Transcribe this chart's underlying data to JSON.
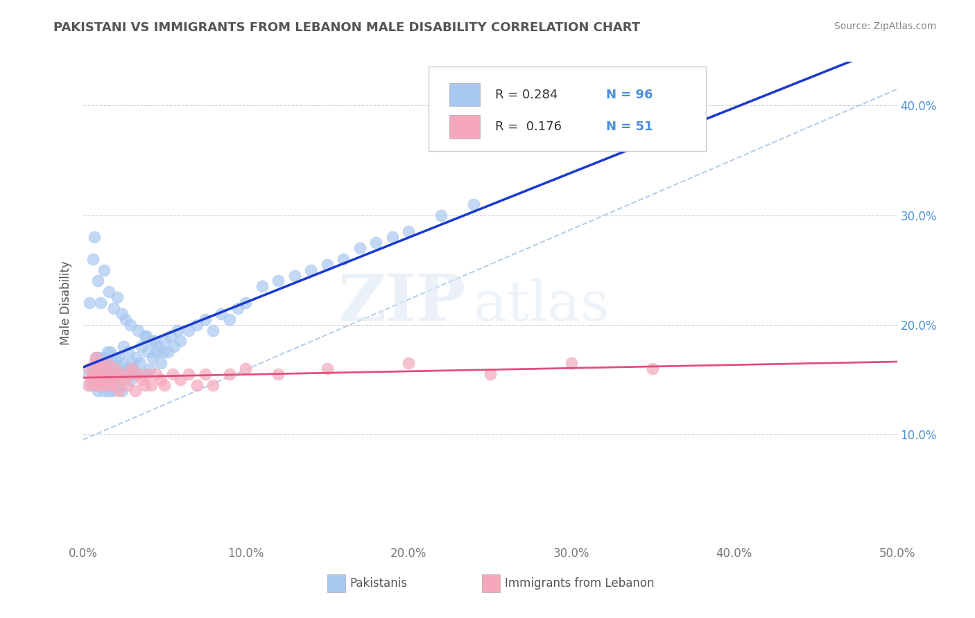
{
  "title": "PAKISTANI VS IMMIGRANTS FROM LEBANON MALE DISABILITY CORRELATION CHART",
  "source": "Source: ZipAtlas.com",
  "ylabel": "Male Disability",
  "xlim": [
    0.0,
    0.5
  ],
  "ylim": [
    0.0,
    0.44
  ],
  "xtick_labels": [
    "0.0%",
    "10.0%",
    "20.0%",
    "30.0%",
    "40.0%",
    "50.0%"
  ],
  "xtick_vals": [
    0.0,
    0.1,
    0.2,
    0.3,
    0.4,
    0.5
  ],
  "ytick_labels": [
    "10.0%",
    "20.0%",
    "30.0%",
    "40.0%"
  ],
  "ytick_vals": [
    0.1,
    0.2,
    0.3,
    0.4
  ],
  "R_blue": 0.284,
  "N_blue": 96,
  "R_pink": 0.176,
  "N_pink": 51,
  "blue_color": "#a8c8f0",
  "pink_color": "#f5a8bc",
  "blue_line_color": "#1a3acc",
  "pink_line_color": "#e0507a",
  "ref_line_color": "#b0c8e8",
  "legend_label_blue": "Pakistanis",
  "legend_label_pink": "Immigrants from Lebanon",
  "watermark_zip": "ZIP",
  "watermark_atlas": "atlas",
  "background_color": "#ffffff",
  "grid_color": "#d0d0d0",
  "tick_color": "#4a90d9",
  "title_color": "#555555",
  "source_color": "#888888",
  "ylabel_color": "#555555",
  "blue_scatter_x": [
    0.003,
    0.005,
    0.006,
    0.007,
    0.008,
    0.008,
    0.009,
    0.01,
    0.01,
    0.01,
    0.011,
    0.012,
    0.012,
    0.013,
    0.013,
    0.014,
    0.015,
    0.015,
    0.015,
    0.016,
    0.016,
    0.017,
    0.017,
    0.018,
    0.018,
    0.019,
    0.02,
    0.02,
    0.021,
    0.022,
    0.022,
    0.023,
    0.024,
    0.025,
    0.025,
    0.026,
    0.027,
    0.028,
    0.029,
    0.03,
    0.031,
    0.032,
    0.033,
    0.035,
    0.036,
    0.037,
    0.038,
    0.04,
    0.041,
    0.042,
    0.043,
    0.045,
    0.046,
    0.048,
    0.05,
    0.052,
    0.054,
    0.056,
    0.058,
    0.06,
    0.065,
    0.07,
    0.075,
    0.08,
    0.085,
    0.09,
    0.095,
    0.1,
    0.11,
    0.12,
    0.13,
    0.14,
    0.15,
    0.16,
    0.17,
    0.18,
    0.19,
    0.2,
    0.22,
    0.24,
    0.004,
    0.006,
    0.007,
    0.009,
    0.011,
    0.013,
    0.016,
    0.019,
    0.021,
    0.024,
    0.026,
    0.029,
    0.034,
    0.039,
    0.044,
    0.049
  ],
  "blue_scatter_y": [
    0.155,
    0.145,
    0.16,
    0.15,
    0.16,
    0.17,
    0.14,
    0.155,
    0.165,
    0.17,
    0.15,
    0.155,
    0.16,
    0.14,
    0.17,
    0.15,
    0.155,
    0.165,
    0.175,
    0.14,
    0.16,
    0.155,
    0.175,
    0.14,
    0.165,
    0.15,
    0.155,
    0.17,
    0.145,
    0.16,
    0.17,
    0.155,
    0.14,
    0.165,
    0.18,
    0.155,
    0.16,
    0.175,
    0.15,
    0.165,
    0.16,
    0.155,
    0.17,
    0.165,
    0.18,
    0.155,
    0.19,
    0.175,
    0.16,
    0.185,
    0.17,
    0.175,
    0.18,
    0.165,
    0.185,
    0.175,
    0.19,
    0.18,
    0.195,
    0.185,
    0.195,
    0.2,
    0.205,
    0.195,
    0.21,
    0.205,
    0.215,
    0.22,
    0.235,
    0.24,
    0.245,
    0.25,
    0.255,
    0.26,
    0.27,
    0.275,
    0.28,
    0.285,
    0.3,
    0.31,
    0.22,
    0.26,
    0.28,
    0.24,
    0.22,
    0.25,
    0.23,
    0.215,
    0.225,
    0.21,
    0.205,
    0.2,
    0.195,
    0.19,
    0.185,
    0.175
  ],
  "pink_scatter_x": [
    0.003,
    0.004,
    0.005,
    0.006,
    0.007,
    0.007,
    0.008,
    0.008,
    0.009,
    0.01,
    0.01,
    0.011,
    0.012,
    0.013,
    0.014,
    0.015,
    0.016,
    0.017,
    0.018,
    0.019,
    0.02,
    0.021,
    0.022,
    0.024,
    0.025,
    0.027,
    0.029,
    0.03,
    0.032,
    0.034,
    0.036,
    0.038,
    0.04,
    0.042,
    0.045,
    0.048,
    0.05,
    0.055,
    0.06,
    0.065,
    0.07,
    0.075,
    0.08,
    0.09,
    0.1,
    0.12,
    0.15,
    0.2,
    0.25,
    0.3,
    0.35
  ],
  "pink_scatter_y": [
    0.145,
    0.16,
    0.15,
    0.155,
    0.145,
    0.165,
    0.155,
    0.17,
    0.145,
    0.15,
    0.165,
    0.155,
    0.145,
    0.16,
    0.15,
    0.165,
    0.145,
    0.155,
    0.15,
    0.145,
    0.16,
    0.155,
    0.14,
    0.155,
    0.15,
    0.145,
    0.155,
    0.16,
    0.14,
    0.155,
    0.15,
    0.145,
    0.155,
    0.145,
    0.155,
    0.15,
    0.145,
    0.155,
    0.15,
    0.155,
    0.145,
    0.155,
    0.145,
    0.155,
    0.16,
    0.155,
    0.16,
    0.165,
    0.155,
    0.165,
    0.16
  ]
}
